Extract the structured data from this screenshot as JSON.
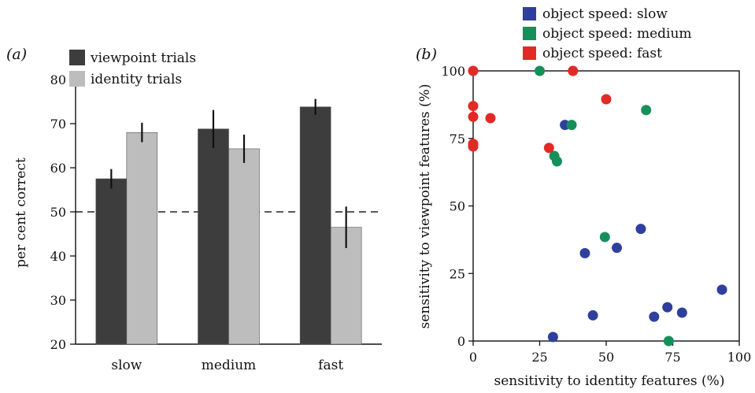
{
  "chart_data": [
    {
      "panel": "(a)",
      "type": "bar",
      "ylabel": "per cent correct",
      "ylim": [
        20,
        80
      ],
      "yticks": [
        20,
        30,
        40,
        50,
        60,
        70,
        80
      ],
      "categories": [
        "slow",
        "medium",
        "fast"
      ],
      "reference_line": 50,
      "legend_position": "top",
      "series": [
        {
          "name": "viewpoint trials",
          "color": "#3d3d3d",
          "values": [
            57.5,
            68.8,
            73.8
          ],
          "errors": [
            2.2,
            4.3,
            1.8
          ]
        },
        {
          "name": "identity trials",
          "color": "#bdbdbd",
          "values": [
            68.0,
            64.3,
            46.5
          ],
          "errors": [
            2.2,
            3.2,
            4.7
          ]
        }
      ]
    },
    {
      "panel": "(b)",
      "type": "scatter",
      "xlabel": "sensitivity to identity features (%)",
      "ylabel": "sensitivity to viewpoint features (%)",
      "xlim": [
        0,
        100
      ],
      "ylim": [
        0,
        100
      ],
      "xticks": [
        0,
        25,
        50,
        75,
        100
      ],
      "yticks": [
        0,
        25,
        50,
        75,
        100
      ],
      "legend_position": "top",
      "series": [
        {
          "name": "object speed: slow",
          "color": "#2e3f9e",
          "points": [
            [
              34.5,
              80
            ],
            [
              42,
              32.5
            ],
            [
              45,
              9.5
            ],
            [
              54,
              34.5
            ],
            [
              63,
              41.5
            ],
            [
              68,
              9
            ],
            [
              73,
              12.5
            ],
            [
              78.5,
              10.5
            ],
            [
              93.5,
              19
            ],
            [
              30,
              1.5
            ]
          ]
        },
        {
          "name": "object speed: medium",
          "color": "#15905a",
          "points": [
            [
              25,
              100
            ],
            [
              37,
              80
            ],
            [
              30.5,
              68.5
            ],
            [
              31.5,
              66.5
            ],
            [
              49.5,
              38.5
            ],
            [
              65,
              85.5
            ],
            [
              73.5,
              0
            ]
          ]
        },
        {
          "name": "object speed: fast",
          "color": "#e22a25",
          "points": [
            [
              0,
              100
            ],
            [
              37.5,
              100
            ],
            [
              0,
              87
            ],
            [
              0,
              83
            ],
            [
              6.5,
              82.5
            ],
            [
              50,
              89.5
            ],
            [
              28.5,
              71.5
            ],
            [
              0,
              73
            ],
            [
              0,
              72
            ]
          ]
        }
      ]
    }
  ]
}
